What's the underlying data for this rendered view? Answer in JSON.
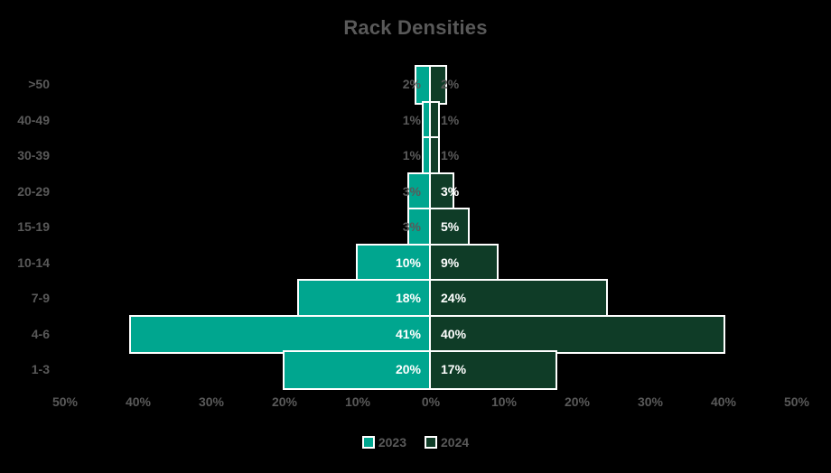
{
  "chart_data": {
    "type": "bar",
    "variant": "butterfly-tornado",
    "title": "Rack Densities",
    "categories": [
      ">50",
      "40-49",
      "30-39",
      "20-29",
      "15-19",
      "10-14",
      "7-9",
      "4-6",
      "1-3"
    ],
    "series": [
      {
        "name": "2023",
        "side": "left",
        "color": "#00A68F",
        "values": [
          2,
          1,
          1,
          3,
          3,
          10,
          18,
          41,
          20
        ],
        "labels": [
          "2%",
          "1%",
          "1%",
          "3%",
          "3%",
          "10%",
          "18%",
          "41%",
          "20%"
        ]
      },
      {
        "name": "2024",
        "side": "right",
        "color": "#0F3C27",
        "values": [
          2,
          1,
          1,
          3,
          5,
          9,
          24,
          40,
          17
        ],
        "labels": [
          "2%",
          "1%",
          "1%",
          "3%",
          "5%",
          "9%",
          "24%",
          "40%",
          "17%"
        ]
      }
    ],
    "x_ticks": [
      "50%",
      "40%",
      "30%",
      "20%",
      "10%",
      "0%",
      "10%",
      "20%",
      "30%",
      "40%",
      "50%"
    ],
    "xlim_pct": [
      -50,
      50
    ],
    "grid": false,
    "legend": {
      "position": "bottom",
      "entries": [
        "2023",
        "2024"
      ]
    }
  },
  "colors": {
    "background": "#000000",
    "text_gray": "#595959",
    "data_label_inside": "#FFFFFF",
    "data_label_outside": "#595959",
    "bar_border": "#FFFFFF",
    "series_2023": "#00A68F",
    "series_2024": "#0F3C27"
  }
}
